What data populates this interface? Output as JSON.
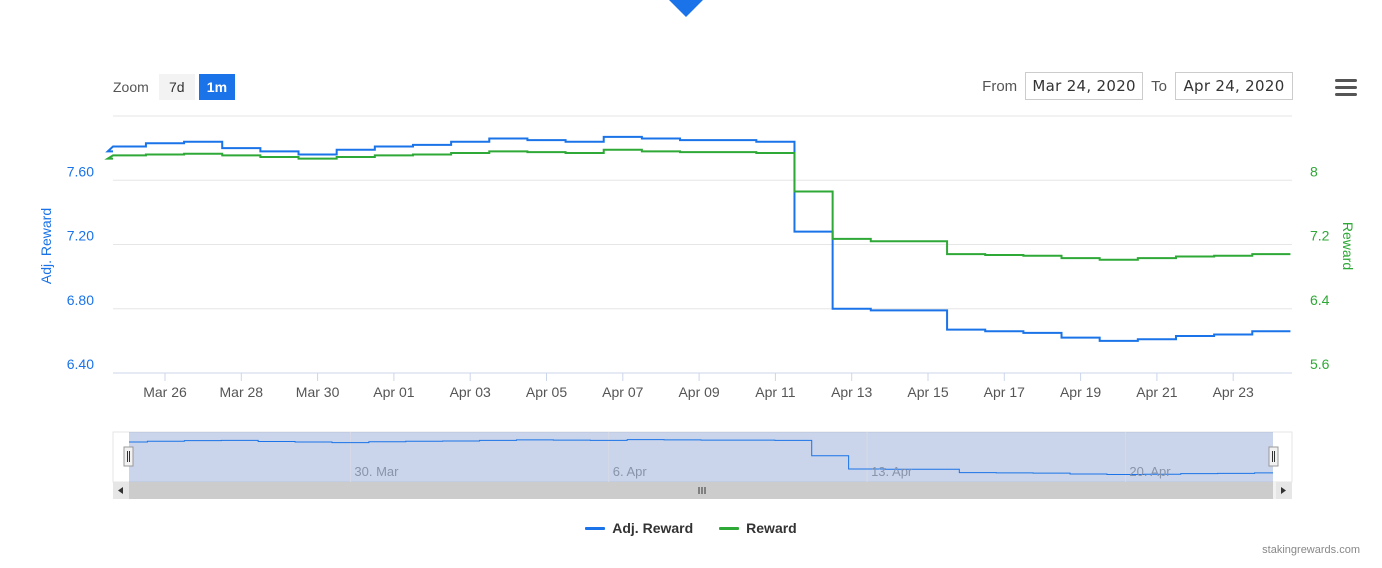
{
  "zoom": {
    "label": "Zoom",
    "buttons": [
      {
        "label": "7d",
        "active": false
      },
      {
        "label": "1m",
        "active": true
      }
    ]
  },
  "range": {
    "from_label": "From",
    "from_value": "Mar 24, 2020",
    "to_label": "To",
    "to_value": "Apr 24, 2020"
  },
  "menu_icon": "hamburger-menu-icon",
  "credits": "stakingrewards.com",
  "colors": {
    "adj": "#1a73e8",
    "reward": "#2ea836",
    "accent": "#1a73e8"
  },
  "chart_data": {
    "type": "line",
    "title": "",
    "x_start_date": "Mar 24, 2020",
    "x_tick_labels": [
      "Mar 26",
      "Mar 28",
      "Mar 30",
      "Apr 01",
      "Apr 03",
      "Apr 05",
      "Apr 07",
      "Apr 09",
      "Apr 11",
      "Apr 13",
      "Apr 15",
      "Apr 17",
      "Apr 19",
      "Apr 21",
      "Apr 23"
    ],
    "y_left": {
      "label": "Adj. Reward",
      "ticks": [
        "6.40",
        "6.80",
        "7.20",
        "7.60"
      ],
      "range": [
        6.4,
        8.0
      ]
    },
    "y_right": {
      "label": "Reward",
      "ticks": [
        "5.6",
        "6.4",
        "7.2",
        "8"
      ],
      "range": [
        5.6,
        8.8
      ]
    },
    "legend": [
      "Adj. Reward",
      "Reward"
    ],
    "navigator_labels": [
      "30. Mar",
      "6. Apr",
      "13. Apr",
      "20. Apr"
    ],
    "series": [
      {
        "name": "Adj. Reward",
        "axis": "left",
        "x": [
          "Mar 24",
          "Mar 25",
          "Mar 26",
          "Mar 27",
          "Mar 28",
          "Mar 29",
          "Mar 30",
          "Mar 31",
          "Apr 01",
          "Apr 02",
          "Apr 03",
          "Apr 04",
          "Apr 05",
          "Apr 06",
          "Apr 07",
          "Apr 08",
          "Apr 09",
          "Apr 10",
          "Apr 11",
          "Apr 12",
          "Apr 13",
          "Apr 14",
          "Apr 15",
          "Apr 16",
          "Apr 17",
          "Apr 18",
          "Apr 19",
          "Apr 20",
          "Apr 21",
          "Apr 22",
          "Apr 23",
          "Apr 24"
        ],
        "values": [
          7.78,
          7.81,
          7.83,
          7.84,
          7.8,
          7.78,
          7.76,
          7.79,
          7.81,
          7.82,
          7.84,
          7.86,
          7.85,
          7.84,
          7.87,
          7.86,
          7.85,
          7.85,
          7.84,
          7.28,
          6.8,
          6.79,
          6.79,
          6.67,
          6.66,
          6.65,
          6.62,
          6.6,
          6.61,
          6.63,
          6.64,
          6.66
        ]
      },
      {
        "name": "Reward",
        "axis": "right",
        "x": [
          "Mar 24",
          "Mar 25",
          "Mar 26",
          "Mar 27",
          "Mar 28",
          "Mar 29",
          "Mar 30",
          "Mar 31",
          "Apr 01",
          "Apr 02",
          "Apr 03",
          "Apr 04",
          "Apr 05",
          "Apr 06",
          "Apr 07",
          "Apr 08",
          "Apr 09",
          "Apr 10",
          "Apr 11",
          "Apr 12",
          "Apr 13",
          "Apr 14",
          "Apr 15",
          "Apr 16",
          "Apr 17",
          "Apr 18",
          "Apr 19",
          "Apr 20",
          "Apr 21",
          "Apr 22",
          "Apr 23",
          "Apr 24"
        ],
        "values": [
          8.27,
          8.31,
          8.32,
          8.33,
          8.31,
          8.29,
          8.27,
          8.29,
          8.31,
          8.32,
          8.34,
          8.36,
          8.35,
          8.34,
          8.38,
          8.36,
          8.35,
          8.35,
          8.34,
          7.86,
          7.27,
          7.24,
          7.24,
          7.08,
          7.07,
          7.06,
          7.03,
          7.01,
          7.03,
          7.05,
          7.06,
          7.08
        ]
      }
    ]
  }
}
